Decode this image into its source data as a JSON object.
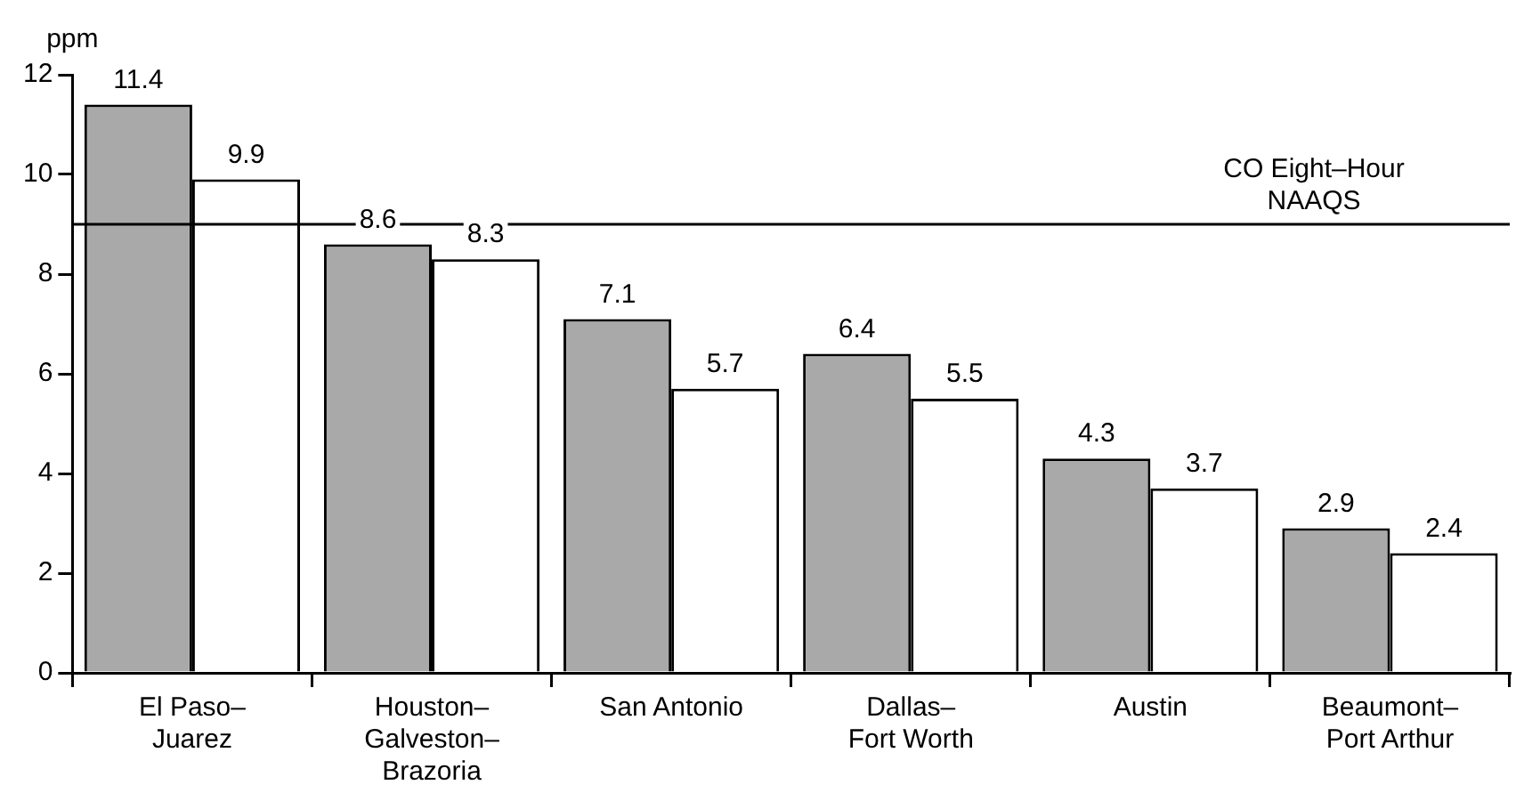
{
  "chart_data": {
    "type": "bar",
    "categories": [
      "El Paso–Juarez",
      "Houston–Galveston–Brazoria",
      "San Antonio",
      "Dallas–Fort Worth",
      "Austin",
      "Beaumont–Port Arthur"
    ],
    "series": [
      {
        "color": "#a9a9a9",
        "values": [
          11.4,
          8.6,
          7.1,
          6.4,
          4.3,
          2.9
        ]
      },
      {
        "color": "#ffffff",
        "values": [
          9.9,
          8.3,
          5.7,
          5.5,
          3.7,
          2.4
        ]
      }
    ],
    "ylabel": "ppm",
    "ylim": [
      0,
      12
    ],
    "yticks": [
      0,
      2,
      4,
      6,
      8,
      10,
      12
    ],
    "ref_lines": [
      {
        "axis": "y",
        "value": 9,
        "label": "CO Eight–Hour NAAQS",
        "color": "#000000"
      }
    ],
    "data_labels": true,
    "grid": false,
    "legend": false
  }
}
